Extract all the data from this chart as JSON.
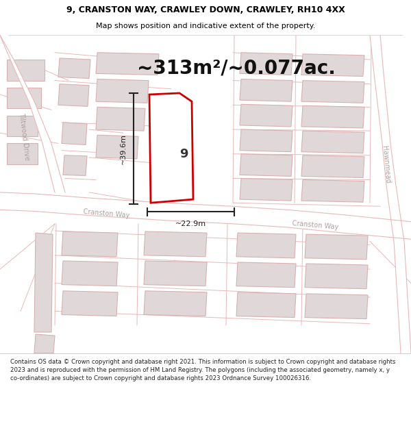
{
  "title_line1": "9, CRANSTON WAY, CRAWLEY DOWN, CRAWLEY, RH10 4XX",
  "title_line2": "Map shows position and indicative extent of the property.",
  "area_text": "~313m²/~0.077ac.",
  "property_number": "9",
  "dim_vertical": "~39.6m",
  "dim_horizontal": "~22.9m",
  "footer_text": "Contains OS data © Crown copyright and database right 2021. This information is subject to Crown copyright and database rights 2023 and is reproduced with the permission of HM Land Registry. The polygons (including the associated geometry, namely x, y co-ordinates) are subject to Crown copyright and database rights 2023 Ordnance Survey 100026316.",
  "bg_color": "#ffffff",
  "map_bg": "#f5f0f0",
  "road_fill": "#ffffff",
  "road_edge": "#e8b8b8",
  "building_fill": "#e0d8d8",
  "building_edge": "#d8b0b0",
  "plot_fill": "#ffffff",
  "plot_edge": "#cc0000",
  "dim_color": "#222222",
  "label_color": "#b0a0a0",
  "title_color": "#000000",
  "footer_color": "#222222",
  "title_fs": 9,
  "subtitle_fs": 8,
  "area_fs": 20,
  "prop_num_fs": 13,
  "dim_fs": 8,
  "road_label_fs": 7,
  "footer_fs": 6.2
}
